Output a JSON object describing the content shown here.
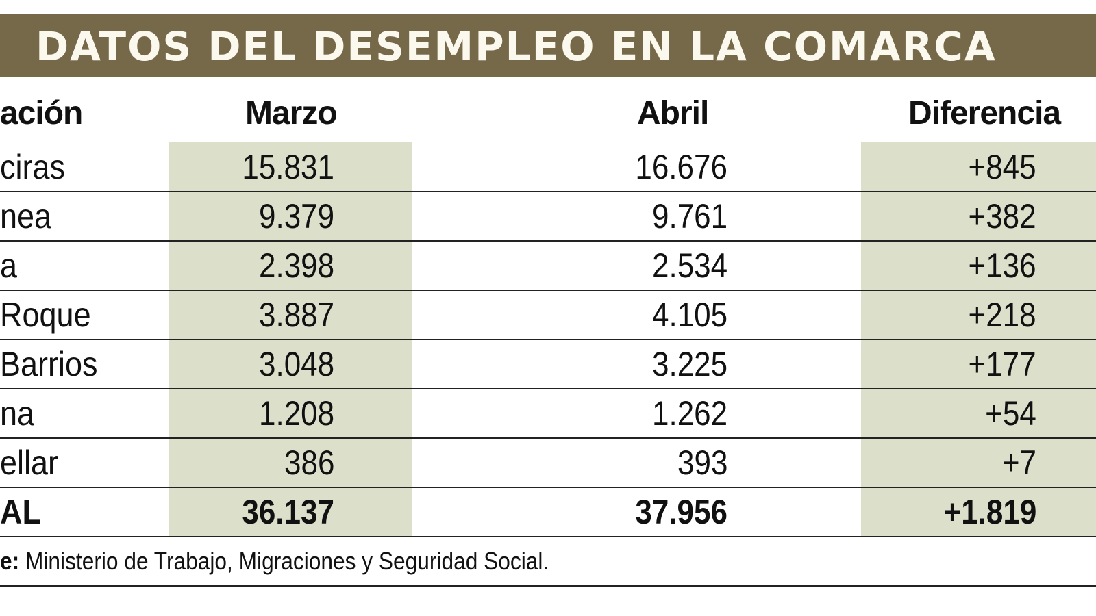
{
  "title": "DATOS DEL DESEMPLEO EN LA COMARCA",
  "colors": {
    "title_bar": "#76694a",
    "title_text": "#fbf8ee",
    "column_shade": "#dcdfca"
  },
  "chart_data": {
    "type": "table",
    "title": "DATOS DEL DESEMPLEO EN LA COMARCA",
    "columns": [
      "ación",
      "Marzo",
      "Abril",
      "Diferencia"
    ],
    "rows": [
      {
        "label": "ciras",
        "marzo": "15.831",
        "abril": "16.676",
        "diferencia": "+845"
      },
      {
        "label": "nea",
        "marzo": "9.379",
        "abril": "9.761",
        "diferencia": "+382"
      },
      {
        "label": "a",
        "marzo": "2.398",
        "abril": "2.534",
        "diferencia": "+136"
      },
      {
        "label": "Roque",
        "marzo": "3.887",
        "abril": "4.105",
        "diferencia": "+218"
      },
      {
        "label": "Barrios",
        "marzo": "3.048",
        "abril": "3.225",
        "diferencia": "+177"
      },
      {
        "label": "na",
        "marzo": "1.208",
        "abril": "1.262",
        "diferencia": "+54"
      },
      {
        "label": "ellar",
        "marzo": "386",
        "abril": "393",
        "diferencia": "+7"
      }
    ],
    "total": {
      "label": "AL",
      "marzo": "36.137",
      "abril": "37.956",
      "diferencia": "+1.819"
    }
  },
  "source": {
    "prefix": "e:",
    "text": "Ministerio de Trabajo, Migraciones y Seguridad Social."
  }
}
